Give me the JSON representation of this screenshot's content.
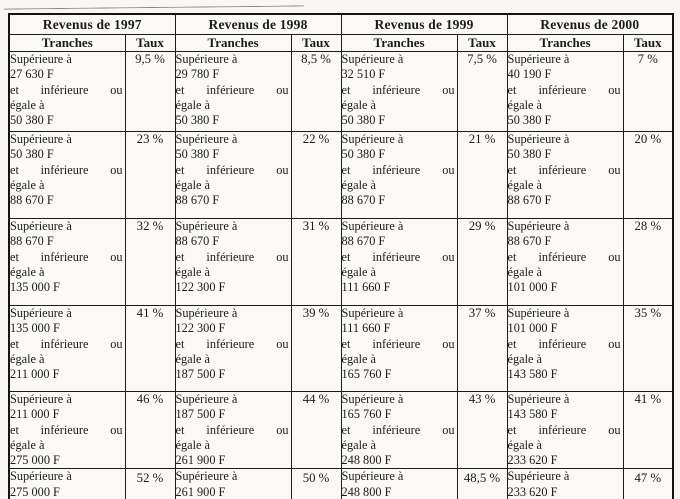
{
  "document": {
    "labels": {
      "superieure": "Supérieure à",
      "et": "et",
      "inferieure": "inférieure",
      "ou": "ou",
      "egale": "égale à"
    },
    "column_headers": {
      "tranches": "Tranches",
      "taux": "Taux"
    },
    "years": [
      {
        "title": "Revenus de 1997",
        "brackets": [
          {
            "lower": "27 630 F",
            "upper": "50 380 F",
            "taux": "9,5 %"
          },
          {
            "lower": "50 380 F",
            "upper": "88 670 F",
            "taux": "23 %"
          },
          {
            "lower": "88 670 F",
            "upper": "135 000 F",
            "taux": "32 %"
          },
          {
            "lower": "135 000 F",
            "upper": "211 000 F",
            "taux": "41 %"
          },
          {
            "lower": "211 000 F",
            "upper": "275 000 F",
            "taux": "46 %"
          },
          {
            "lower": "275 000 F",
            "upper": null,
            "taux": "52 %"
          }
        ]
      },
      {
        "title": "Revenus de 1998",
        "brackets": [
          {
            "lower": "29 780 F",
            "upper": "50 380 F",
            "taux": "8,5 %"
          },
          {
            "lower": "50 380 F",
            "upper": "88 670 F",
            "taux": "22 %"
          },
          {
            "lower": "88 670 F",
            "upper": "122 300 F",
            "taux": "31 %"
          },
          {
            "lower": "122 300 F",
            "upper": "187 500 F",
            "taux": "39 %"
          },
          {
            "lower": "187 500 F",
            "upper": "261 900 F",
            "taux": "44 %"
          },
          {
            "lower": "261 900 F",
            "upper": null,
            "taux": "50 %"
          }
        ]
      },
      {
        "title": "Revenus de 1999",
        "brackets": [
          {
            "lower": "32 510 F",
            "upper": "50 380 F",
            "taux": "7,5 %"
          },
          {
            "lower": "50 380 F",
            "upper": "88 670 F",
            "taux": "21 %"
          },
          {
            "lower": "88 670 F",
            "upper": "111 660 F",
            "taux": "29 %"
          },
          {
            "lower": "111 660 F",
            "upper": "165 760 F",
            "taux": "37 %"
          },
          {
            "lower": "165 760 F",
            "upper": "248 800 F",
            "taux": "43 %"
          },
          {
            "lower": "248 800 F",
            "upper": null,
            "taux": "48,5 %"
          }
        ]
      },
      {
        "title": "Revenus de 2000",
        "brackets": [
          {
            "lower": "40 190 F",
            "upper": "50 380 F",
            "taux": "7 %"
          },
          {
            "lower": "50 380 F",
            "upper": "88 670 F",
            "taux": "20 %"
          },
          {
            "lower": "88 670 F",
            "upper": "101 000 F",
            "taux": "28 %"
          },
          {
            "lower": "101 000 F",
            "upper": "143 580 F",
            "taux": "35 %"
          },
          {
            "lower": "143 580 F",
            "upper": "233 620 F",
            "taux": "41 %"
          },
          {
            "lower": "233 620 F",
            "upper": null,
            "taux": "47 %"
          }
        ]
      }
    ],
    "colors": {
      "ink": "#1b1b1b",
      "paper": "#f8f7f4",
      "border": "#141414"
    }
  }
}
